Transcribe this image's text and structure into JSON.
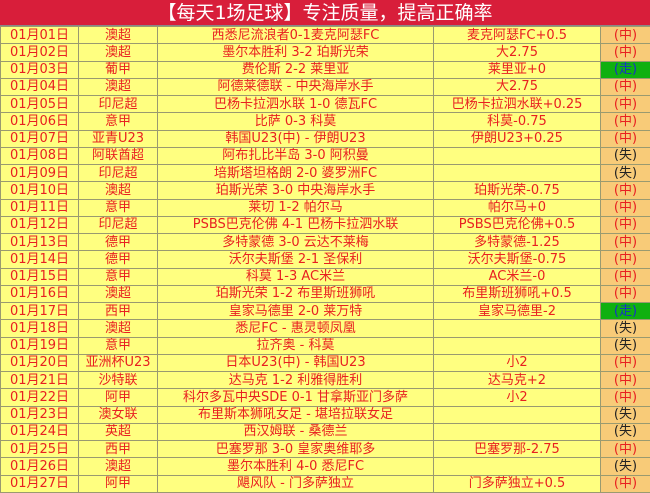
{
  "title": "【每天1场足球】专注质量，提高正确率",
  "colors": {
    "header": "#d81e3a",
    "row_bg": "#ffff80",
    "result_bg": "#f8cb78",
    "push_bg": "#10b010",
    "text_red": "#e82020"
  },
  "rows": [
    {
      "date": "01月01日",
      "league": "澳超",
      "match": "西悉尼流浪者0-1麦克阿瑟FC",
      "pick": "麦克阿瑟FC+0.5",
      "result": "(中)"
    },
    {
      "date": "01月02日",
      "league": "澳超",
      "match": "墨尔本胜利 3-2 珀斯光荣",
      "pick": "大2.75",
      "result": "(中)"
    },
    {
      "date": "01月03日",
      "league": "葡甲",
      "match": "费伦斯 2-2 莱里亚",
      "pick": "莱里亚+0",
      "result": "(走)"
    },
    {
      "date": "01月04日",
      "league": "澳超",
      "match": "阿德莱德联 - 中央海岸水手",
      "pick": "大2.75",
      "result": "(中)"
    },
    {
      "date": "01月05日",
      "league": "印尼超",
      "match": "巴杨卡拉泗水联 1-0 德瓦FC",
      "pick": "巴杨卡拉泗水联+0.25",
      "result": "(中)"
    },
    {
      "date": "01月06日",
      "league": "意甲",
      "match": "比萨 0-3 科莫",
      "pick": "科莫-0.75",
      "result": "(中)"
    },
    {
      "date": "01月07日",
      "league": "亚青U23",
      "match": "韩国U23(中) - 伊朗U23",
      "pick": "伊朗U23+0.25",
      "result": "(中)"
    },
    {
      "date": "01月08日",
      "league": "阿联酋超",
      "match": "阿布扎比半岛 3-0 阿积曼",
      "pick": "",
      "result": "(失)"
    },
    {
      "date": "01月09日",
      "league": "印尼超",
      "match": "培斯塔坦格朗 2-0 婆罗洲FC",
      "pick": "",
      "result": "(失)"
    },
    {
      "date": "01月10日",
      "league": "澳超",
      "match": "珀斯光荣 3-0 中央海岸水手",
      "pick": "珀斯光荣-0.75",
      "result": "(中)"
    },
    {
      "date": "01月11日",
      "league": "意甲",
      "match": "莱切 1-2 帕尔马",
      "pick": "帕尔马+0",
      "result": "(中)"
    },
    {
      "date": "01月12日",
      "league": "印尼超",
      "match": "PSBS巴克伦佛 4-1 巴杨卡拉泗水联",
      "pick": "PSBS巴克伦佛+0.5",
      "result": "(中)"
    },
    {
      "date": "01月13日",
      "league": "德甲",
      "match": "多特蒙德 3-0 云达不莱梅",
      "pick": "多特蒙德-1.25",
      "result": "(中)"
    },
    {
      "date": "01月14日",
      "league": "德甲",
      "match": "沃尔夫斯堡 2-1 圣保利",
      "pick": "沃尔夫斯堡-0.75",
      "result": "(中)"
    },
    {
      "date": "01月15日",
      "league": "意甲",
      "match": "科莫 1-3 AC米兰",
      "pick": "AC米兰-0",
      "result": "(中)"
    },
    {
      "date": "01月16日",
      "league": "澳超",
      "match": "珀斯光荣 1-2 布里斯班狮吼",
      "pick": "布里斯班狮吼+0.5",
      "result": "(中)"
    },
    {
      "date": "01月17日",
      "league": "西甲",
      "match": "皇家马德里 2-0 莱万特",
      "pick": "皇家马德里-2",
      "result": "(走)"
    },
    {
      "date": "01月18日",
      "league": "澳超",
      "match": "悉尼FC - 惠灵顿凤凰",
      "pick": "",
      "result": "(失)"
    },
    {
      "date": "01月19日",
      "league": "意甲",
      "match": "拉齐奥 - 科莫",
      "pick": "",
      "result": "(失)"
    },
    {
      "date": "01月20日",
      "league": "亚洲杯U23",
      "match": "日本U23(中) - 韩国U23",
      "pick": "小2",
      "result": "(中)"
    },
    {
      "date": "01月21日",
      "league": "沙特联",
      "match": "达马克 1-2 利雅得胜利",
      "pick": "达马克+2",
      "result": "(中)"
    },
    {
      "date": "01月22日",
      "league": "阿甲",
      "match": "科尔多瓦中央SDE 0-1 甘拿斯亚门多萨",
      "pick": "小2",
      "result": "(中)"
    },
    {
      "date": "01月23日",
      "league": "澳女联",
      "match": "布里斯本狮吼女足 - 堪培拉联女足",
      "pick": "",
      "result": "(失)"
    },
    {
      "date": "01月24日",
      "league": "英超",
      "match": "西汉姆联 - 桑德兰",
      "pick": "",
      "result": "(失)"
    },
    {
      "date": "01月25日",
      "league": "西甲",
      "match": "巴塞罗那 3-0 皇家奥维耶多",
      "pick": "巴塞罗那-2.75",
      "result": "(中)"
    },
    {
      "date": "01月26日",
      "league": "澳超",
      "match": "墨尔本胜利 4-0 悉尼FC",
      "pick": "",
      "result": "(失)"
    },
    {
      "date": "01月27日",
      "league": "阿甲",
      "match": "飓风队 - 门多萨独立",
      "pick": "门多萨独立+0.5",
      "result": "(中)"
    }
  ]
}
